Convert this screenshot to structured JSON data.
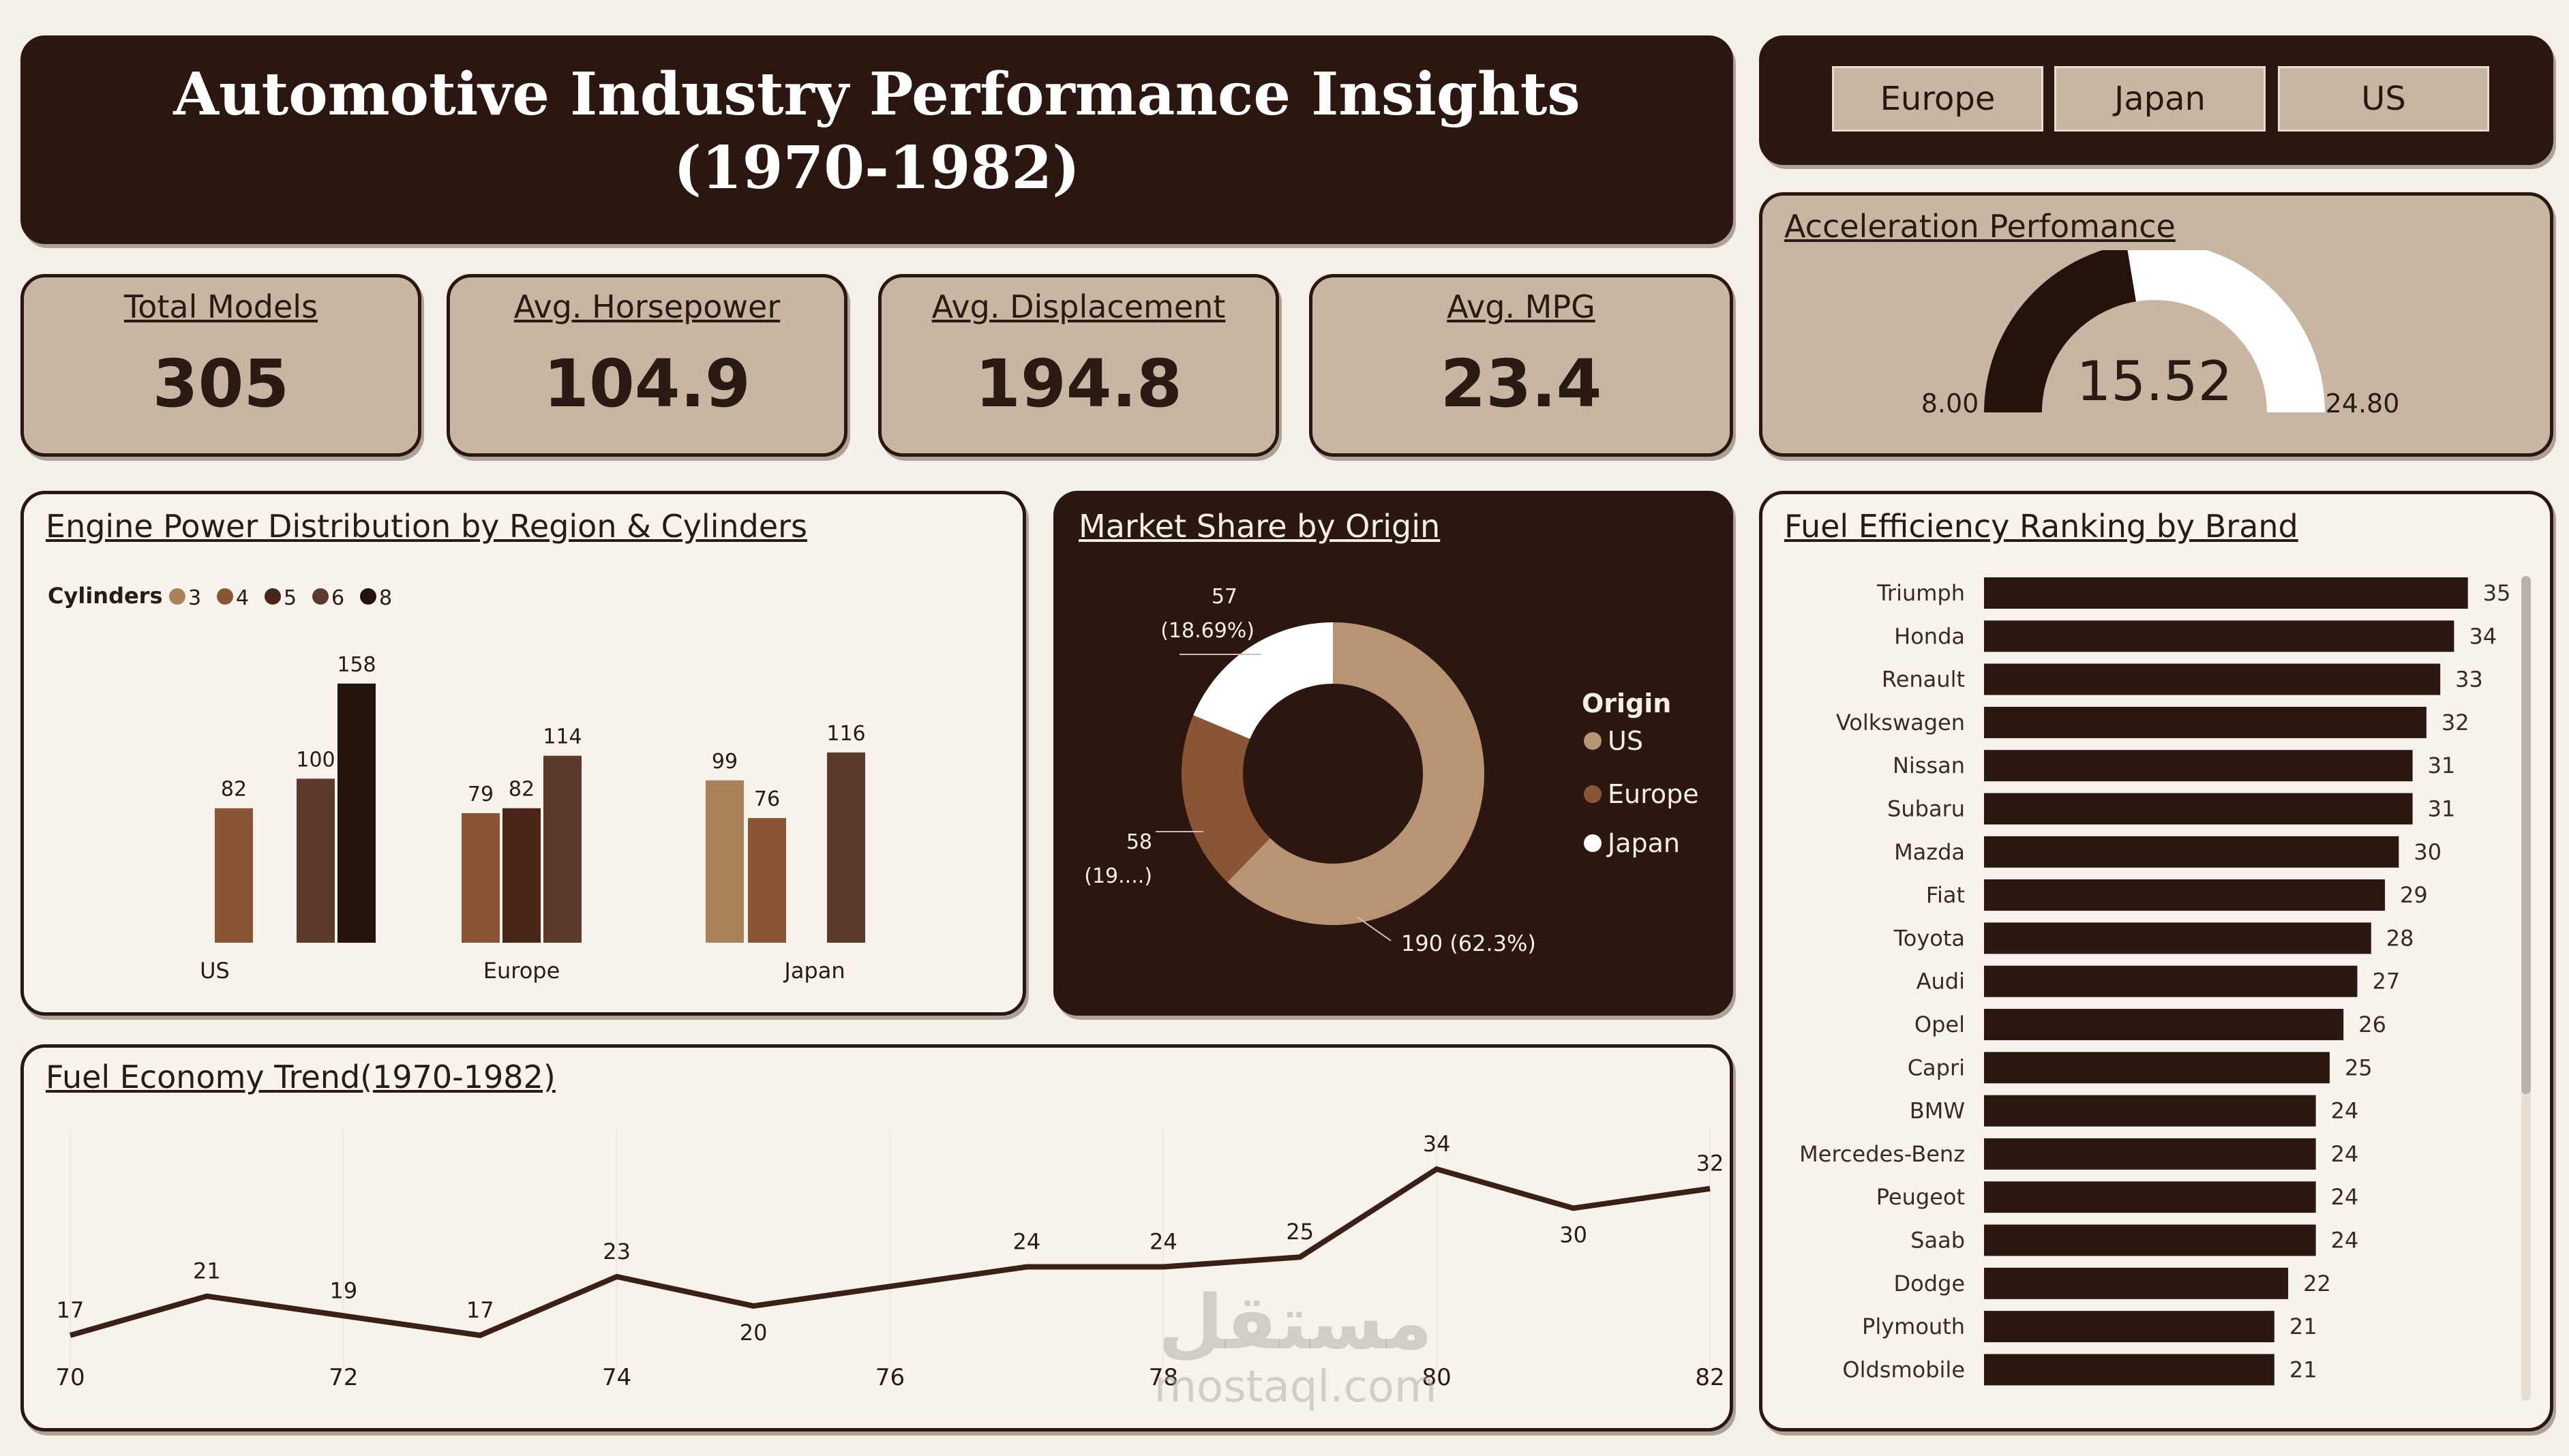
{
  "header": {
    "title_line1": "Automotive Industry Performance Insights",
    "title_line2": "(1970-1982)"
  },
  "slicer": {
    "options": [
      "Europe",
      "Japan",
      "US"
    ]
  },
  "kpis": [
    {
      "label": "Total Models",
      "value": "305"
    },
    {
      "label": "Avg. Horsepower",
      "value": "104.9"
    },
    {
      "label": "Avg. Displacement",
      "value": "194.8"
    },
    {
      "label": "Avg. MPG",
      "value": "23.4"
    }
  ],
  "gauge": {
    "title": "Acceleration Perfomance",
    "min": 8.0,
    "max": 24.8,
    "value": 15.52,
    "min_label": "8.00",
    "max_label": "24.80",
    "value_label": "15.52"
  },
  "colors": {
    "cyl3": "#a9825c",
    "cyl4": "#8a5535",
    "cyl5": "#4a2618",
    "cyl6": "#5e3a2c",
    "cyl8": "#24120b",
    "us": "#b89474",
    "europe": "#8a5535",
    "japan": "#ffffff",
    "dark": "#2c1710"
  },
  "chart_data": [
    {
      "type": "bar",
      "title": "Engine Power Distribution by Region & Cylinders",
      "legend_title": "Cylinders",
      "legend_placement": "top-left",
      "cylinder_keys": [
        "3",
        "4",
        "5",
        "6",
        "8"
      ],
      "categories": [
        "US",
        "Europe",
        "Japan"
      ],
      "series": [
        {
          "name": "3",
          "values": [
            null,
            null,
            99
          ]
        },
        {
          "name": "4",
          "values": [
            82,
            79,
            76
          ]
        },
        {
          "name": "5",
          "values": [
            null,
            82,
            null
          ]
        },
        {
          "name": "6",
          "values": [
            100,
            114,
            116
          ]
        },
        {
          "name": "8",
          "values": [
            158,
            null,
            null
          ]
        }
      ],
      "ylim": [
        0,
        160
      ]
    },
    {
      "type": "pie",
      "title": "Market Share by Origin",
      "legend_title": "Origin",
      "legend_placement": "right",
      "slices": [
        {
          "name": "US",
          "value": 190,
          "label": "190 (62.3%)"
        },
        {
          "name": "Europe",
          "value": 58,
          "label_value": "58",
          "label_pct": "(19....)"
        },
        {
          "name": "Japan",
          "value": 57,
          "label_value": "57",
          "label_pct": "(18.69%)"
        }
      ]
    },
    {
      "type": "bar",
      "title": "Fuel Efficiency Ranking by Brand",
      "categories": [
        "Triumph",
        "Honda",
        "Renault",
        "Volkswagen",
        "Nissan",
        "Subaru",
        "Mazda",
        "Fiat",
        "Toyota",
        "Audi",
        "Opel",
        "Capri",
        "BMW",
        "Mercedes-Benz",
        "Peugeot",
        "Saab",
        "Dodge",
        "Plymouth",
        "Oldsmobile"
      ],
      "values": [
        35,
        34,
        33,
        32,
        31,
        31,
        30,
        29,
        28,
        27,
        26,
        25,
        24,
        24,
        24,
        24,
        22,
        21,
        21
      ],
      "xlim": [
        0,
        36
      ]
    },
    {
      "type": "line",
      "title": "Fuel Economy Trend(1970-1982)",
      "x": [
        70,
        71,
        72,
        73,
        74,
        75,
        76,
        77,
        78,
        79,
        80,
        81,
        82
      ],
      "y": [
        17,
        21,
        19,
        17,
        23,
        20,
        22,
        24,
        24,
        25,
        34,
        30,
        32
      ],
      "point_labels": [
        "17",
        "21",
        "19",
        "17",
        "23",
        "20",
        "",
        "24",
        "24",
        "25",
        "34",
        "30",
        "32"
      ],
      "x_ticks": [
        "70",
        "72",
        "74",
        "76",
        "78",
        "80",
        "82"
      ],
      "ylim": [
        14,
        37
      ]
    }
  ],
  "watermark": {
    "arabic": "مستقل",
    "site": "mostaql.com"
  }
}
